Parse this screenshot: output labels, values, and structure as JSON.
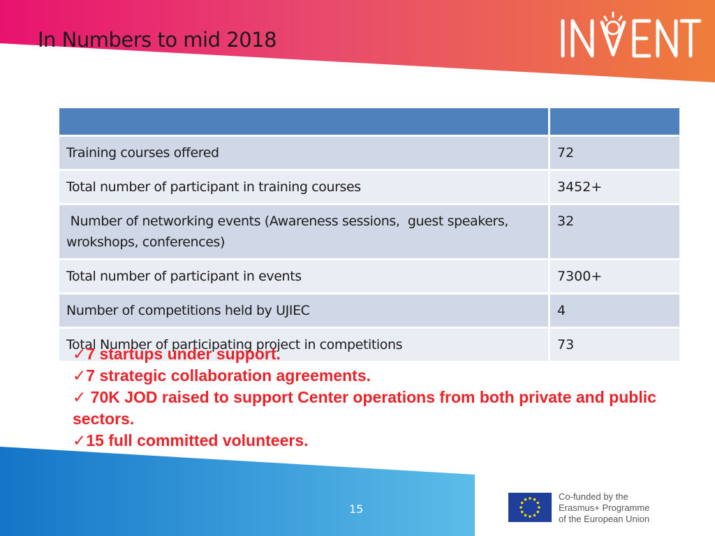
{
  "slide": {
    "title": "In Numbers to mid 2018",
    "logo_text": "INVENT",
    "page_number": "15"
  },
  "table": {
    "header": [
      "",
      ""
    ],
    "rows": [
      {
        "label": "Training courses offered",
        "value": "72"
      },
      {
        "label": "Total number of participant in training courses",
        "value": "3452+"
      },
      {
        "label": " Number of networking events (Awareness sessions,  guest speakers, wrokshops, conferences)",
        "value": "32"
      },
      {
        "label": "Total number of participant in events",
        "value": "7300+"
      },
      {
        "label": "Number of competitions held by UJIEC",
        "value": "4"
      },
      {
        "label": "Total Number of participating project in competitions",
        "value": "73"
      }
    ]
  },
  "highlights": [
    "7 startups under support.",
    "7 strategic collaboration agreements.",
    " 70K JOD raised to support Center operations from both private and public sectors.",
    "15 full committed volunteers."
  ],
  "footer": {
    "eu_line1": "Co-funded by the",
    "eu_line2": "Erasmus+ Programme",
    "eu_line3": "of the European Union"
  },
  "colors": {
    "header_blue": "#4f81bd",
    "row_odd": "#d0d8e8",
    "row_even": "#e9edf4",
    "highlight_red": "#e8232a",
    "band_pink": "#e6176f",
    "band_orange": "#ee7a3a",
    "band_blue": "#1e88d4"
  }
}
